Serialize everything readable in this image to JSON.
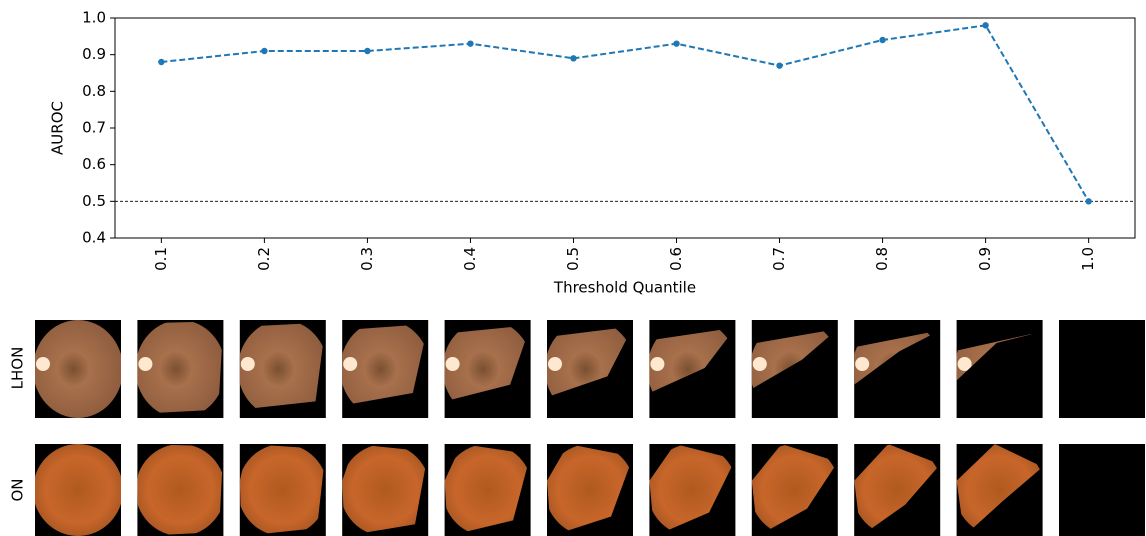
{
  "chart_data": {
    "type": "line",
    "x_label": "Threshold Quantile",
    "y_label": "AUROC",
    "x": [
      0.1,
      0.2,
      0.3,
      0.4,
      0.5,
      0.6,
      0.7,
      0.8,
      0.9,
      1.0
    ],
    "series": [
      {
        "values": [
          0.88,
          0.91,
          0.91,
          0.93,
          0.89,
          0.93,
          0.87,
          0.94,
          0.98,
          0.5
        ],
        "color": "#1f77b4"
      }
    ],
    "xlim": [
      0.055,
      1.045
    ],
    "xticks": [
      0.1,
      0.2,
      0.3,
      0.4,
      0.5,
      0.6,
      0.7,
      0.8,
      0.9,
      {
        "value": 1.0,
        "label": "1.0"
      }
    ],
    "ylim": [
      0.4,
      1.0
    ],
    "yticks": [
      0.4,
      0.5,
      0.6,
      0.7,
      0.8,
      0.9,
      {
        "value": 1.0,
        "label": "1.0"
      }
    ],
    "reference_line": 0.5
  },
  "image_panel": {
    "row_labels": [
      "LHON",
      "ON"
    ]
  }
}
